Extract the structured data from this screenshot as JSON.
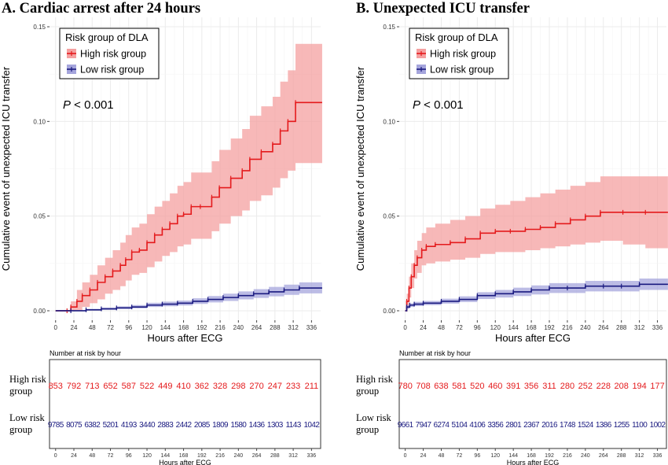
{
  "chart_data": [
    {
      "type": "line",
      "panel": "A",
      "title": "A. Cardiac arrest after 24 hours",
      "xlabel": "Hours after ECG",
      "ylabel": "Cumulative event of unexpected ICU transfer",
      "xlim": [
        -8,
        348
      ],
      "ylim": [
        -0.005,
        0.155
      ],
      "xticks": [
        0,
        24,
        48,
        72,
        96,
        120,
        144,
        168,
        192,
        216,
        240,
        264,
        288,
        312,
        336
      ],
      "yticks": [
        0.0,
        0.05,
        0.1,
        0.15
      ],
      "ytick_labels": [
        "0.00",
        "0.05",
        "0.10",
        "0.15"
      ],
      "grid": true,
      "legend": {
        "title": "Risk group of DLA",
        "position": "top-left"
      },
      "annotation": {
        "italic": "P",
        "rest": " < 0.001"
      },
      "series": [
        {
          "name": "High risk group",
          "color": "#e41a1c",
          "band_color": "#f4a0a0",
          "x": [
            0,
            15,
            20,
            28,
            35,
            45,
            55,
            65,
            75,
            85,
            92,
            100,
            110,
            120,
            130,
            140,
            150,
            160,
            168,
            178,
            190,
            205,
            215,
            230,
            245,
            255,
            270,
            285,
            295,
            305,
            315,
            350
          ],
          "y": [
            0,
            0.0,
            0.002,
            0.005,
            0.008,
            0.011,
            0.015,
            0.018,
            0.021,
            0.024,
            0.027,
            0.031,
            0.032,
            0.036,
            0.04,
            0.043,
            0.046,
            0.05,
            0.051,
            0.055,
            0.055,
            0.06,
            0.065,
            0.07,
            0.074,
            0.08,
            0.084,
            0.088,
            0.095,
            0.1,
            0.11,
            0.11
          ],
          "lower": [
            0,
            0.0,
            0.0,
            0.0,
            0.002,
            0.004,
            0.006,
            0.009,
            0.011,
            0.013,
            0.016,
            0.019,
            0.02,
            0.023,
            0.026,
            0.029,
            0.031,
            0.034,
            0.035,
            0.038,
            0.038,
            0.042,
            0.046,
            0.05,
            0.053,
            0.058,
            0.061,
            0.065,
            0.07,
            0.074,
            0.078,
            0.078
          ],
          "upper": [
            0,
            0.0,
            0.005,
            0.011,
            0.015,
            0.019,
            0.024,
            0.028,
            0.032,
            0.036,
            0.04,
            0.044,
            0.046,
            0.051,
            0.055,
            0.058,
            0.062,
            0.066,
            0.068,
            0.073,
            0.073,
            0.079,
            0.085,
            0.091,
            0.096,
            0.103,
            0.108,
            0.113,
            0.121,
            0.127,
            0.141,
            0.141
          ]
        },
        {
          "name": "Low risk group",
          "color": "#1a1a80",
          "band_color": "#a5a5dc",
          "x": [
            0,
            20,
            40,
            60,
            80,
            100,
            120,
            140,
            160,
            180,
            200,
            220,
            240,
            260,
            280,
            300,
            320,
            350
          ],
          "y": [
            0,
            0.0,
            0.0005,
            0.001,
            0.0015,
            0.002,
            0.003,
            0.0035,
            0.004,
            0.005,
            0.006,
            0.007,
            0.008,
            0.009,
            0.01,
            0.011,
            0.012,
            0.012
          ],
          "lower": [
            0,
            0.0,
            0.0002,
            0.0005,
            0.0009,
            0.0013,
            0.002,
            0.0024,
            0.0028,
            0.0036,
            0.0044,
            0.0052,
            0.006,
            0.0068,
            0.0076,
            0.0084,
            0.0092,
            0.0092
          ],
          "upper": [
            0,
            0.0,
            0.001,
            0.0017,
            0.0023,
            0.003,
            0.0042,
            0.0048,
            0.0054,
            0.0066,
            0.0078,
            0.009,
            0.0102,
            0.0114,
            0.0126,
            0.0138,
            0.015,
            0.015
          ]
        }
      ],
      "risk_table": {
        "title": "Number at risk by hour",
        "xlabel": "Hours after ECG",
        "rows": [
          {
            "label": "High risk group",
            "color": "#e41a1c",
            "values": [
              "853",
              "792",
              "713",
              "652",
              "587",
              "522",
              "449",
              "410",
              "362",
              "328",
              "298",
              "270",
              "247",
              "233",
              "211"
            ]
          },
          {
            "label": "Low risk group",
            "color": "#1a1a80",
            "values": [
              "9785",
              "8075",
              "6382",
              "5201",
              "4193",
              "3440",
              "2883",
              "2442",
              "2085",
              "1809",
              "1580",
              "1436",
              "1303",
              "1143",
              "1042"
            ]
          }
        ]
      }
    },
    {
      "type": "line",
      "panel": "B",
      "title": "B. Unexpected ICU transfer",
      "xlabel": "Hours after ECG",
      "ylabel": "Cumulative event of unexpected ICU transfer",
      "xlim": [
        -8,
        348
      ],
      "ylim": [
        -0.005,
        0.155
      ],
      "xticks": [
        0,
        24,
        48,
        72,
        96,
        120,
        144,
        168,
        192,
        216,
        240,
        264,
        288,
        312,
        336
      ],
      "yticks": [
        0.0,
        0.05,
        0.1,
        0.15
      ],
      "ytick_labels": [
        "0.00",
        "0.05",
        "0.10",
        "0.15"
      ],
      "grid": true,
      "legend": {
        "title": "Risk group of DLA",
        "position": "top-left"
      },
      "annotation": {
        "italic": "P",
        "rest": " < 0.001"
      },
      "series": [
        {
          "name": "High risk group",
          "color": "#e41a1c",
          "band_color": "#f4a0a0",
          "x": [
            0,
            2,
            5,
            8,
            12,
            16,
            22,
            28,
            40,
            60,
            80,
            100,
            120,
            140,
            160,
            180,
            200,
            220,
            240,
            260,
            290,
            320,
            350
          ],
          "y": [
            0,
            0.005,
            0.012,
            0.018,
            0.024,
            0.028,
            0.032,
            0.034,
            0.035,
            0.036,
            0.038,
            0.041,
            0.042,
            0.042,
            0.043,
            0.044,
            0.046,
            0.048,
            0.05,
            0.052,
            0.052,
            0.052,
            0.052
          ],
          "lower": [
            0,
            0.001,
            0.007,
            0.012,
            0.017,
            0.02,
            0.024,
            0.025,
            0.026,
            0.027,
            0.028,
            0.03,
            0.031,
            0.031,
            0.032,
            0.033,
            0.034,
            0.035,
            0.036,
            0.037,
            0.035,
            0.033,
            0.033
          ],
          "upper": [
            0,
            0.009,
            0.018,
            0.025,
            0.032,
            0.037,
            0.041,
            0.044,
            0.046,
            0.048,
            0.05,
            0.054,
            0.056,
            0.058,
            0.06,
            0.062,
            0.064,
            0.066,
            0.068,
            0.071,
            0.071,
            0.071,
            0.071
          ]
        },
        {
          "name": "Low risk group",
          "color": "#1a1a80",
          "band_color": "#a5a5dc",
          "x": [
            0,
            2,
            6,
            12,
            24,
            48,
            72,
            96,
            120,
            144,
            168,
            192,
            216,
            240,
            264,
            288,
            312,
            350
          ],
          "y": [
            0,
            0.002,
            0.003,
            0.0035,
            0.004,
            0.005,
            0.006,
            0.008,
            0.009,
            0.01,
            0.011,
            0.012,
            0.012,
            0.013,
            0.013,
            0.013,
            0.014,
            0.014
          ],
          "lower": [
            0,
            0.001,
            0.002,
            0.0025,
            0.003,
            0.0038,
            0.0046,
            0.0062,
            0.007,
            0.0078,
            0.0086,
            0.0094,
            0.0094,
            0.0102,
            0.0102,
            0.0102,
            0.011,
            0.011
          ],
          "upper": [
            0,
            0.003,
            0.004,
            0.0047,
            0.0052,
            0.0064,
            0.0076,
            0.0098,
            0.011,
            0.0122,
            0.0134,
            0.0146,
            0.0146,
            0.0158,
            0.0158,
            0.0158,
            0.017,
            0.017
          ]
        }
      ],
      "risk_table": {
        "title": "Number at risk by hour",
        "xlabel": "Hours after ECG",
        "rows": [
          {
            "label": "High risk group",
            "color": "#e41a1c",
            "values": [
              "780",
              "708",
              "638",
              "581",
              "520",
              "460",
              "391",
              "356",
              "311",
              "280",
              "252",
              "228",
              "208",
              "194",
              "177"
            ]
          },
          {
            "label": "Low risk group",
            "color": "#1a1a80",
            "values": [
              "9661",
              "7947",
              "6274",
              "5104",
              "4106",
              "3356",
              "2801",
              "2367",
              "2016",
              "1748",
              "1524",
              "1386",
              "1255",
              "1100",
              "1002"
            ]
          }
        ]
      }
    }
  ]
}
